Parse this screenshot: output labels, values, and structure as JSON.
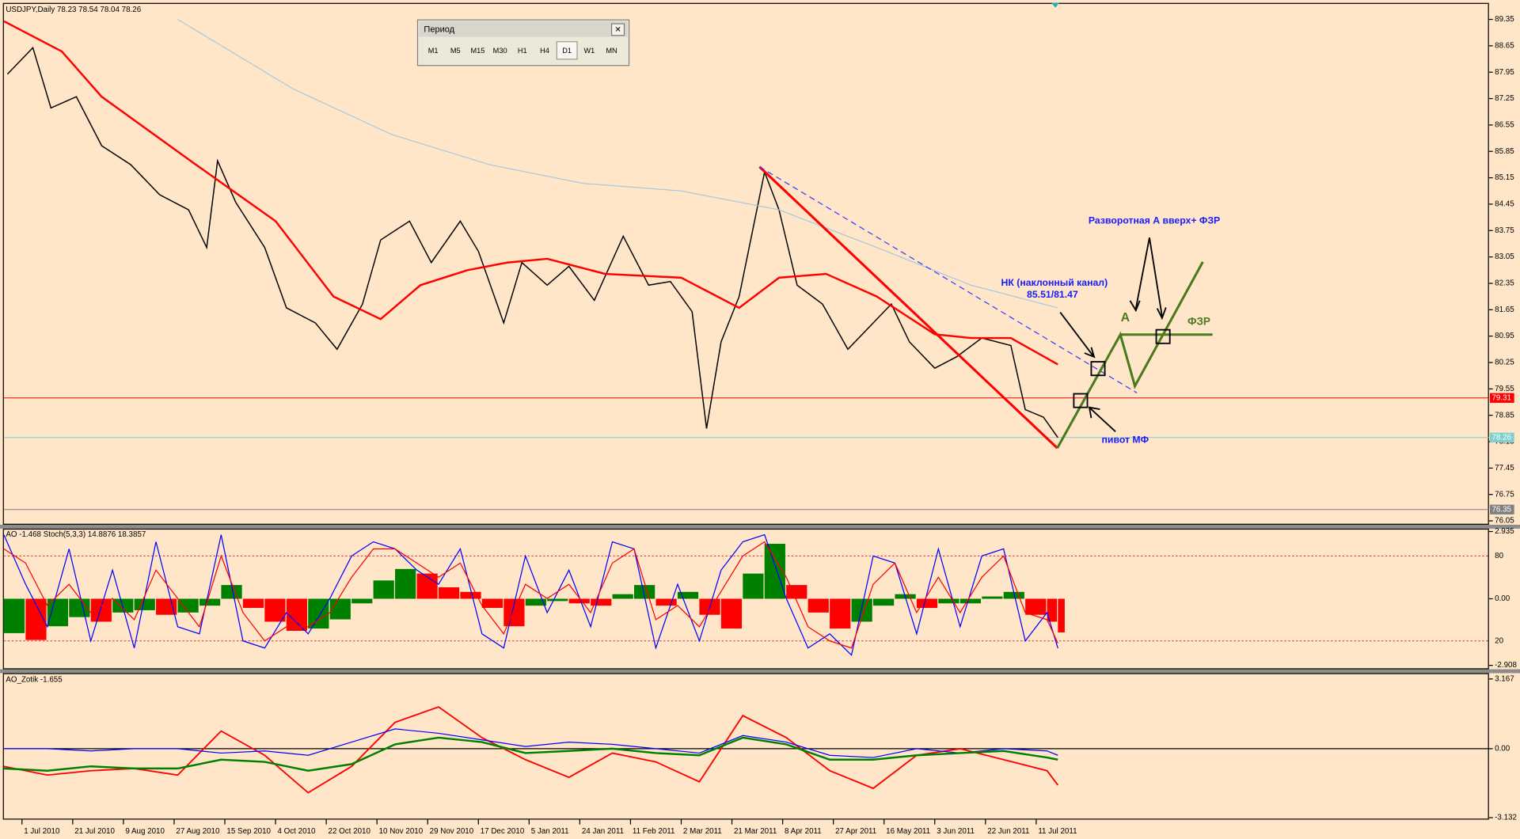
{
  "header": "USDJPY,Daily  78.23 78.54 78.04 78.26",
  "period_window": {
    "title": "Период",
    "buttons": [
      "M1",
      "M5",
      "M15",
      "M30",
      "H1",
      "H4",
      "D1",
      "W1",
      "MN"
    ]
  },
  "annotations": [
    "Разворотная А вверх+ ФЗР",
    "НК (наклонный канал)",
    "85.51/81.47",
    "А",
    "ФЗР",
    "пивот МФ"
  ],
  "chart_data": [
    {
      "type": "line",
      "xlim": [
        0,
        410
      ],
      "ylim": [
        76.05,
        89.35
      ],
      "yticks": [
        89.35,
        88.65,
        87.95,
        87.25,
        86.55,
        85.85,
        85.15,
        84.45,
        83.75,
        83.05,
        82.35,
        81.65,
        80.95,
        80.25,
        79.55,
        78.85,
        78.15,
        77.45,
        76.75,
        76.05
      ],
      "xticks": [
        {
          "value": 5,
          "label": "1 Jul 2010"
        },
        {
          "value": 19,
          "label": "21 Jul 2010"
        },
        {
          "value": 33,
          "label": "9 Aug 2010"
        },
        {
          "value": 47,
          "label": "27 Aug 2010"
        },
        {
          "value": 61,
          "label": "15 Sep 2010"
        },
        {
          "value": 75,
          "label": "4 Oct 2010"
        },
        {
          "value": 89,
          "label": "22 Oct 2010"
        },
        {
          "value": 103,
          "label": "10 Nov 2010"
        },
        {
          "value": 117,
          "label": "29 Nov 2010"
        },
        {
          "value": 131,
          "label": "17 Dec 2010"
        },
        {
          "value": 145,
          "label": "5 Jan 2011"
        },
        {
          "value": 159,
          "label": "24 Jan 2011"
        },
        {
          "value": 173,
          "label": "11 Feb 2011"
        },
        {
          "value": 187,
          "label": "2 Mar 2011"
        },
        {
          "value": 201,
          "label": "21 Mar 2011"
        },
        {
          "value": 215,
          "label": "8 Apr 2011"
        },
        {
          "value": 229,
          "label": "27 Apr 2011"
        },
        {
          "value": 243,
          "label": "16 May 2011"
        },
        {
          "value": 257,
          "label": "3 Jun 2011"
        },
        {
          "value": 271,
          "label": "22 Jun 2011"
        },
        {
          "value": 285,
          "label": "11 Jul 2011"
        }
      ],
      "series": [
        {
          "color": "#000000",
          "width": 1.2,
          "x": [
            1,
            8,
            13,
            20,
            27,
            35,
            43,
            51,
            56,
            59,
            64,
            72,
            78,
            86,
            92,
            99,
            104,
            112,
            118,
            126,
            131,
            138,
            143,
            150,
            156,
            163,
            171,
            178,
            184,
            190,
            194,
            198,
            203,
            210,
            214,
            219,
            226,
            233,
            239,
            245,
            250,
            257,
            263,
            270,
            278,
            282,
            287,
            291
          ],
          "values": [
            87.9,
            88.6,
            87.0,
            87.3,
            86.0,
            85.5,
            84.7,
            84.3,
            83.3,
            85.6,
            84.5,
            83.3,
            81.7,
            81.3,
            80.6,
            81.8,
            83.5,
            84.0,
            82.9,
            84.0,
            83.2,
            81.3,
            82.9,
            82.3,
            82.8,
            81.9,
            83.6,
            82.3,
            82.4,
            81.6,
            78.5,
            80.8,
            82.0,
            85.3,
            84.3,
            82.3,
            81.8,
            80.6,
            81.2,
            81.8,
            80.8,
            80.1,
            80.4,
            80.9,
            80.7,
            79.0,
            78.8,
            78.26
          ]
        },
        {
          "color": "#ff0000",
          "width": 2,
          "x": [
            0,
            16,
            27,
            53,
            75,
            91,
            104,
            115,
            128,
            139,
            150,
            166,
            187,
            203,
            214,
            227,
            241,
            257,
            267,
            278,
            291
          ],
          "values": [
            89.3,
            88.5,
            87.3,
            85.5,
            84.0,
            82.0,
            81.4,
            82.3,
            82.7,
            82.9,
            83.0,
            82.6,
            82.5,
            81.7,
            82.5,
            82.6,
            82.0,
            81.0,
            80.9,
            80.9,
            80.2
          ]
        },
        {
          "color": "#a8c8dc",
          "width": 1,
          "x": [
            48,
            80,
            107,
            134,
            160,
            187,
            214,
            241,
            267,
            291
          ],
          "values": [
            89.35,
            87.5,
            86.3,
            85.5,
            85.0,
            84.8,
            84.3,
            83.3,
            82.3,
            81.7
          ]
        }
      ],
      "markers": [
        {
          "value": 79.31,
          "color": "#ff0000"
        },
        {
          "value": 78.26,
          "color": "#7fcfcf"
        },
        {
          "value": 76.35,
          "color": "#808080"
        }
      ]
    },
    {
      "type": "bar",
      "label": "AO -1.468  Stoch(5,3,3) 14.8876 18.3857",
      "xlim": [
        0,
        410
      ],
      "ylim": [
        -2.908,
        2.935
      ],
      "yticks": [
        2.935,
        {
          "value": 0,
          "label": "0.00"
        },
        -2.908
      ],
      "y2lim": [
        0,
        100
      ],
      "y2ticks": [
        80,
        20
      ],
      "up_color": "#008000",
      "down_color": "#ff0000",
      "x": [
        0,
        6,
        12,
        18,
        24,
        30,
        36,
        42,
        48,
        54,
        60,
        66,
        72,
        78,
        84,
        90,
        96,
        102,
        108,
        114,
        120,
        126,
        132,
        138,
        144,
        150,
        156,
        162,
        168,
        174,
        180,
        186,
        192,
        198,
        204,
        210,
        216,
        222,
        228,
        234,
        240,
        246,
        252,
        258,
        264,
        270,
        276,
        282,
        288,
        291
      ],
      "values": [
        -1.5,
        -1.8,
        -1.2,
        -0.8,
        -1.0,
        -0.6,
        -0.5,
        -0.7,
        -0.6,
        -0.3,
        0.6,
        -0.4,
        -1.0,
        -1.4,
        -1.3,
        -0.9,
        -0.2,
        0.8,
        1.3,
        1.1,
        0.5,
        0.3,
        -0.4,
        -1.2,
        -0.3,
        -0.1,
        -0.2,
        -0.3,
        0.2,
        0.6,
        -0.3,
        0.3,
        -0.7,
        -1.3,
        1.1,
        2.4,
        0.6,
        -0.6,
        -1.3,
        -1.0,
        -0.3,
        0.2,
        -0.4,
        -0.2,
        -0.2,
        0.1,
        0.3,
        -0.7,
        -1.0,
        -1.468
      ],
      "series": [
        {
          "color": "#0000ff",
          "axis": "y2",
          "values": [
            95,
            60,
            30,
            85,
            20,
            70,
            15,
            90,
            30,
            25,
            95,
            20,
            15,
            40,
            25,
            50,
            80,
            90,
            85,
            70,
            60,
            85,
            25,
            15,
            80,
            40,
            70,
            30,
            90,
            85,
            15,
            60,
            20,
            70,
            90,
            95,
            50,
            15,
            25,
            10,
            80,
            75,
            25,
            85,
            30,
            80,
            85,
            20,
            40,
            14.8876
          ]
        },
        {
          "color": "#ff0000",
          "axis": "y2",
          "values": [
            85,
            75,
            45,
            60,
            40,
            50,
            35,
            70,
            50,
            30,
            80,
            40,
            20,
            30,
            30,
            40,
            65,
            85,
            85,
            75,
            65,
            75,
            45,
            25,
            60,
            50,
            60,
            40,
            75,
            85,
            35,
            45,
            30,
            55,
            80,
            90,
            65,
            30,
            20,
            15,
            60,
            75,
            40,
            65,
            40,
            65,
            80,
            40,
            35,
            18.3857
          ]
        }
      ]
    },
    {
      "type": "line",
      "label": "AO_Zotik -1.655",
      "xlim": [
        0,
        410
      ],
      "ylim": [
        -3.132,
        3.167
      ],
      "yticks": [
        3.167,
        {
          "value": 0,
          "label": "0.00"
        },
        -3.132
      ],
      "x": [
        0,
        12,
        24,
        36,
        48,
        60,
        72,
        84,
        96,
        108,
        120,
        132,
        144,
        156,
        168,
        180,
        192,
        204,
        216,
        228,
        240,
        252,
        264,
        276,
        288,
        291
      ],
      "series": [
        {
          "color": "#ff0000",
          "width": 1.5,
          "values": [
            -0.8,
            -1.2,
            -1.0,
            -0.9,
            -1.2,
            0.8,
            -0.3,
            -2.0,
            -0.8,
            1.2,
            1.9,
            0.5,
            -0.5,
            -1.3,
            -0.2,
            -0.6,
            -1.5,
            1.5,
            0.5,
            -1.0,
            -1.8,
            -0.3,
            0.0,
            -0.5,
            -1.0,
            -1.655
          ]
        },
        {
          "color": "#0000ff",
          "width": 1,
          "values": [
            0.0,
            0.0,
            -0.1,
            0.0,
            0.0,
            -0.2,
            -0.1,
            -0.3,
            0.3,
            0.9,
            0.7,
            0.4,
            0.1,
            0.3,
            0.2,
            0.0,
            -0.2,
            0.6,
            0.3,
            -0.3,
            -0.4,
            0.0,
            -0.2,
            0.0,
            -0.1,
            -0.3
          ]
        },
        {
          "color": "#008000",
          "width": 2,
          "values": [
            -0.9,
            -1.0,
            -0.8,
            -0.9,
            -0.9,
            -0.5,
            -0.6,
            -1.0,
            -0.7,
            0.2,
            0.5,
            0.3,
            -0.2,
            -0.1,
            0.0,
            -0.2,
            -0.3,
            0.5,
            0.2,
            -0.5,
            -0.5,
            -0.3,
            -0.2,
            -0.1,
            -0.4,
            -0.5
          ]
        }
      ]
    }
  ]
}
